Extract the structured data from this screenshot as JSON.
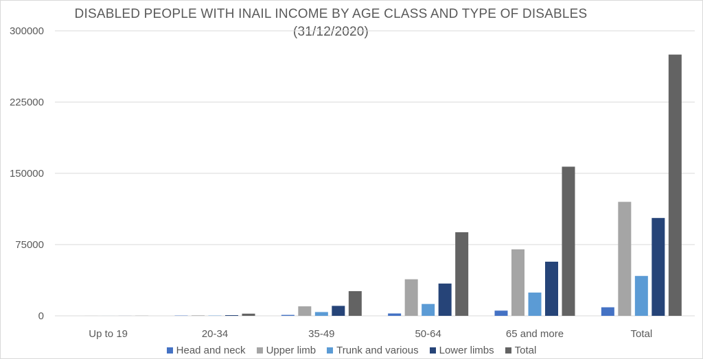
{
  "chart_data": {
    "type": "bar",
    "title": "DISABLED PEOPLE WITH INAIL INCOME BY AGE CLASS AND TYPE OF DISABLES",
    "subtitle": "(31/12/2020)",
    "xlabel": "",
    "ylabel": "",
    "ylim": [
      0,
      300000
    ],
    "yticks": [
      "0",
      "75000",
      "150000",
      "225000",
      "300000"
    ],
    "ytick_values": [
      0,
      75000,
      150000,
      225000,
      300000
    ],
    "grid": true,
    "legend_position": "bottom",
    "categories": [
      "Up to 19",
      "20-34",
      "35-49",
      "50-64",
      "65 and more",
      "Total"
    ],
    "series": [
      {
        "name": "Head and neck",
        "color": "#4472c4",
        "values": [
          0,
          300,
          1000,
          2500,
          5500,
          9000
        ]
      },
      {
        "name": "Upper limb",
        "color": "#a5a5a5",
        "values": [
          50,
          500,
          10000,
          38500,
          70000,
          120000
        ]
      },
      {
        "name": "Trunk and various",
        "color": "#5b9bd5",
        "values": [
          20,
          300,
          4000,
          12500,
          24500,
          42000
        ]
      },
      {
        "name": "Lower limbs",
        "color": "#264478",
        "values": [
          50,
          700,
          10500,
          34000,
          57000,
          103000
        ]
      },
      {
        "name": "Total",
        "color": "#636363",
        "values": [
          100,
          2300,
          26000,
          88000,
          157000,
          275000
        ]
      }
    ]
  }
}
